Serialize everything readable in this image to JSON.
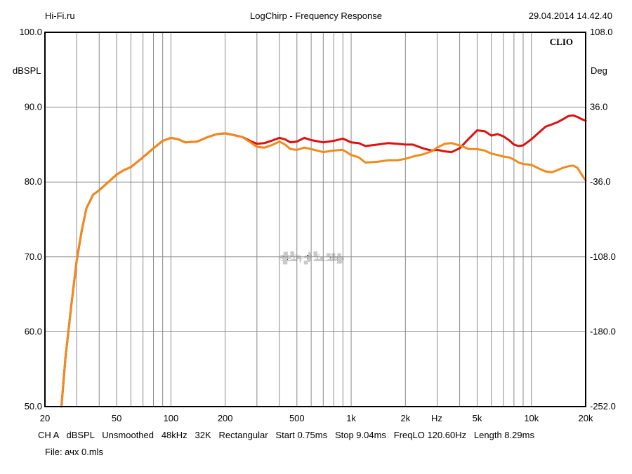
{
  "header": {
    "site": "Hi-Fi.ru",
    "title": "LogChirp - Frequency Response",
    "datetime": "29.04.2014 14.42.40"
  },
  "brand": "CLIO",
  "watermark": "Hi-Fi.ru",
  "footer": {
    "settings": "CH A   dBSPL   Unsmoothed   48kHz   32K   Rectangular   Start 0.75ms   Stop 9.04ms   FreqLO 120.60Hz   Length 8.29ms",
    "file": "File: ачх 0.mls"
  },
  "colors": {
    "series_red": "#dd1111",
    "series_orange": "#f08a1c",
    "grid": "#8a8a8a",
    "watermark": "#c9c9c9"
  },
  "chart_data": {
    "type": "line",
    "xscale": "log",
    "xlim": [
      20,
      20000
    ],
    "ylim": [
      50,
      100
    ],
    "y2lim": [
      -252,
      108
    ],
    "ylabel": "dBSPL",
    "y2label": "Deg",
    "xlabel": "Hz",
    "xticks": [
      {
        "value": 20,
        "label": "20"
      },
      {
        "value": 50,
        "label": "50"
      },
      {
        "value": 100,
        "label": "100"
      },
      {
        "value": 200,
        "label": "200"
      },
      {
        "value": 500,
        "label": "500"
      },
      {
        "value": 1000,
        "label": "1k"
      },
      {
        "value": 2000,
        "label": "2k"
      },
      {
        "value": 5000,
        "label": "5k"
      },
      {
        "value": 10000,
        "label": "10k"
      },
      {
        "value": 20000,
        "label": "20k"
      }
    ],
    "yticks": [
      {
        "value": 50,
        "label": "50.0"
      },
      {
        "value": 60,
        "label": "60.0"
      },
      {
        "value": 70,
        "label": "70.0"
      },
      {
        "value": 80,
        "label": "80.0"
      },
      {
        "value": 90,
        "label": "90.0"
      },
      {
        "value": 100,
        "label": "100.0"
      }
    ],
    "y2ticks": [
      {
        "value": -252,
        "label": "-252.0"
      },
      {
        "value": -180,
        "label": "-180.0"
      },
      {
        "value": -108,
        "label": "-108.0"
      },
      {
        "value": -36,
        "label": "-36.0"
      },
      {
        "value": 36,
        "label": "36.0"
      },
      {
        "value": 108,
        "label": "108.0"
      }
    ],
    "grid": true,
    "series": [
      {
        "color": "#dd1111",
        "x": [
          24.7,
          26,
          28,
          30,
          32,
          34,
          37,
          40,
          45,
          50,
          55,
          60,
          70,
          80,
          90,
          100,
          110,
          120,
          140,
          160,
          180,
          200,
          220,
          250,
          280,
          300,
          330,
          360,
          400,
          430,
          460,
          500,
          550,
          600,
          700,
          800,
          900,
          1000,
          1100,
          1200,
          1400,
          1600,
          1800,
          2000,
          2200,
          2500,
          2800,
          3000,
          3300,
          3600,
          4000,
          4500,
          5000,
          5500,
          6000,
          6500,
          7000,
          7500,
          8000,
          8500,
          9000,
          10000,
          11000,
          12000,
          13000,
          14000,
          15000,
          16000,
          17000,
          18000,
          19000,
          20000
        ],
        "y": [
          50.0,
          56.5,
          63.5,
          69.5,
          73.5,
          76.5,
          78.3,
          78.9,
          80.0,
          81.0,
          81.6,
          82.0,
          83.3,
          84.5,
          85.5,
          85.9,
          85.7,
          85.3,
          85.4,
          86.0,
          86.4,
          86.5,
          86.3,
          86.0,
          85.4,
          85.1,
          85.2,
          85.5,
          85.9,
          85.7,
          85.3,
          85.4,
          85.9,
          85.6,
          85.3,
          85.5,
          85.8,
          85.3,
          85.2,
          84.8,
          85.0,
          85.2,
          85.1,
          85.0,
          85.0,
          84.5,
          84.2,
          84.3,
          84.1,
          84.0,
          84.5,
          85.8,
          86.9,
          86.8,
          86.2,
          86.4,
          86.1,
          85.6,
          85.0,
          84.8,
          84.9,
          85.7,
          86.6,
          87.4,
          87.7,
          88.0,
          88.4,
          88.8,
          88.9,
          88.7,
          88.4,
          88.2
        ]
      },
      {
        "color": "#f08a1c",
        "x": [
          24.7,
          26,
          28,
          30,
          32,
          34,
          37,
          40,
          45,
          50,
          55,
          60,
          70,
          80,
          90,
          100,
          110,
          120,
          140,
          160,
          180,
          200,
          220,
          250,
          280,
          300,
          330,
          360,
          400,
          430,
          460,
          500,
          550,
          600,
          700,
          800,
          900,
          1000,
          1100,
          1200,
          1400,
          1600,
          1800,
          2000,
          2200,
          2500,
          2800,
          3000,
          3300,
          3600,
          4000,
          4500,
          5000,
          5500,
          6000,
          6500,
          7000,
          7500,
          8000,
          8500,
          9000,
          10000,
          11000,
          12000,
          13000,
          14000,
          15000,
          16000,
          17000,
          18000,
          19000,
          20000
        ],
        "y": [
          50.0,
          56.5,
          63.5,
          69.5,
          73.5,
          76.5,
          78.3,
          78.9,
          80.0,
          81.0,
          81.6,
          82.0,
          83.3,
          84.5,
          85.5,
          85.9,
          85.7,
          85.3,
          85.4,
          86.0,
          86.4,
          86.5,
          86.3,
          86.0,
          85.2,
          84.7,
          84.6,
          84.9,
          85.4,
          85.0,
          84.4,
          84.3,
          84.6,
          84.4,
          84.0,
          84.2,
          84.3,
          83.6,
          83.3,
          82.6,
          82.7,
          82.9,
          82.9,
          83.1,
          83.4,
          83.7,
          84.1,
          84.6,
          85.1,
          85.2,
          84.9,
          84.4,
          84.4,
          84.2,
          83.8,
          83.6,
          83.4,
          83.3,
          83.0,
          82.6,
          82.4,
          82.3,
          81.8,
          81.4,
          81.3,
          81.6,
          81.9,
          82.1,
          82.2,
          81.9,
          81.0,
          80.2
        ]
      }
    ]
  }
}
